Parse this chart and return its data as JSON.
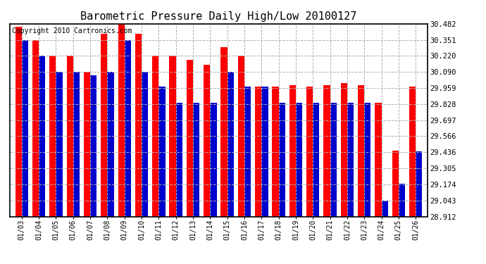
{
  "title": "Barometric Pressure Daily High/Low 20100127",
  "copyright_text": "Copyright 2010 Cartronics.com",
  "dates": [
    "01/03",
    "01/04",
    "01/05",
    "01/06",
    "01/07",
    "01/08",
    "01/09",
    "01/10",
    "01/11",
    "01/12",
    "01/13",
    "01/14",
    "01/15",
    "01/16",
    "01/17",
    "01/18",
    "01/19",
    "01/20",
    "01/21",
    "01/22",
    "01/23",
    "01/24",
    "01/25",
    "01/26"
  ],
  "highs": [
    30.46,
    30.35,
    30.22,
    30.22,
    30.09,
    30.4,
    30.48,
    30.4,
    30.22,
    30.22,
    30.19,
    30.15,
    30.29,
    30.22,
    29.97,
    29.97,
    29.98,
    29.97,
    29.98,
    30.0,
    29.98,
    29.84,
    29.45,
    29.97
  ],
  "lows": [
    30.35,
    30.22,
    30.09,
    30.09,
    30.06,
    30.09,
    30.35,
    30.09,
    29.97,
    29.84,
    29.84,
    29.84,
    30.09,
    29.97,
    29.97,
    29.84,
    29.84,
    29.84,
    29.84,
    29.84,
    29.84,
    29.04,
    29.18,
    29.44
  ],
  "ymin": 28.912,
  "ymax": 30.482,
  "yticks": [
    30.482,
    30.351,
    30.22,
    30.09,
    29.959,
    29.828,
    29.697,
    29.566,
    29.436,
    29.305,
    29.174,
    29.043,
    28.912
  ],
  "bar_color_high": "#ff0000",
  "bar_color_low": "#0000cc",
  "bg_color": "#ffffff",
  "grid_color": "#b0b0b0",
  "title_fontsize": 11,
  "copyright_fontsize": 7,
  "bar_width": 0.38
}
